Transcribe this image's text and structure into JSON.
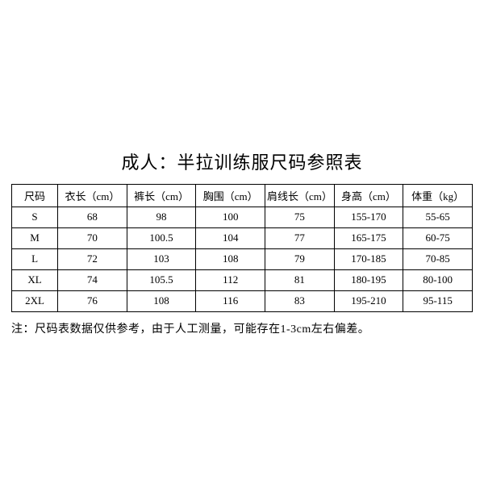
{
  "title": "成人：半拉训练服尺码参照表",
  "table": {
    "type": "table",
    "columns": [
      "尺码",
      "衣长（cm）",
      "裤长（cm）",
      "胸围（cm）",
      "肩线长（cm）",
      "身高（cm）",
      "体重（kg）"
    ],
    "rows": [
      [
        "S",
        "68",
        "98",
        "100",
        "75",
        "155-170",
        "55-65"
      ],
      [
        "M",
        "70",
        "100.5",
        "104",
        "77",
        "165-175",
        "60-75"
      ],
      [
        "L",
        "72",
        "103",
        "108",
        "79",
        "170-185",
        "70-85"
      ],
      [
        "XL",
        "74",
        "105.5",
        "112",
        "81",
        "180-195",
        "80-100"
      ],
      [
        "2XL",
        "76",
        "108",
        "116",
        "83",
        "195-210",
        "95-115"
      ]
    ],
    "border_color": "#000000",
    "background_color": "#ffffff",
    "text_color": "#000000",
    "header_fontsize": 13,
    "cell_fontsize": 13,
    "col_widths": [
      "10%",
      "15%",
      "15%",
      "15%",
      "15%",
      "15%",
      "15%"
    ]
  },
  "note": "注：尺码表数据仅供参考，由于人工测量，可能存在1-3cm左右偏差。",
  "title_fontsize": 22,
  "note_fontsize": 14
}
